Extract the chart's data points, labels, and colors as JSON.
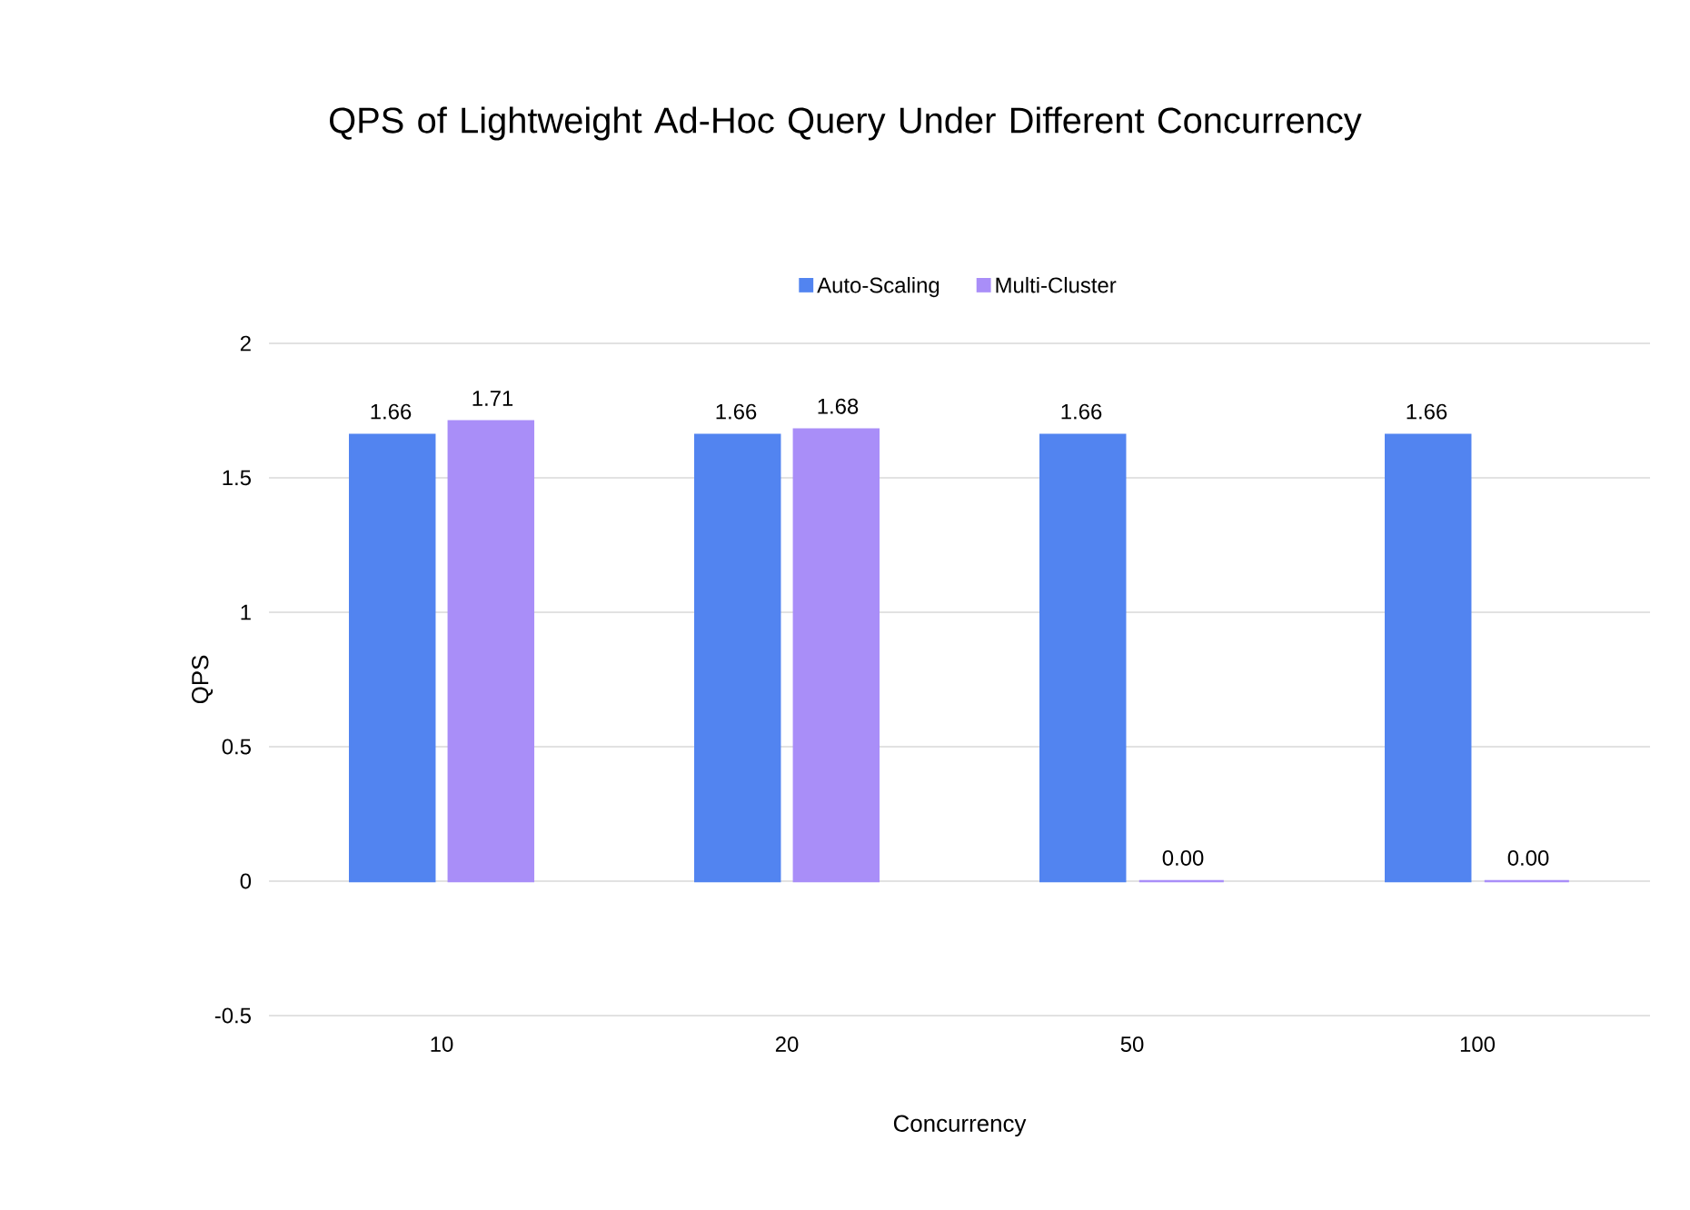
{
  "chart_data": {
    "type": "bar",
    "title": "QPS of Lightweight Ad-Hoc Query Under Different Concurrency",
    "xlabel": "Concurrency",
    "ylabel": "QPS",
    "categories": [
      "10",
      "20",
      "50",
      "100"
    ],
    "series": [
      {
        "name": "Auto-Scaling",
        "color": "#5284f0",
        "values": [
          1.66,
          1.66,
          1.66,
          1.66
        ],
        "value_labels": [
          "1.66",
          "1.66",
          "1.66",
          "1.66"
        ]
      },
      {
        "name": "Multi-Cluster",
        "color": "#a98ef8",
        "values": [
          1.71,
          1.68,
          0.0,
          0.0
        ],
        "value_labels": [
          "1.71",
          "1.68",
          "0.00",
          "0.00"
        ]
      }
    ],
    "ylim": [
      -0.5,
      2
    ],
    "yticks": [
      -0.5,
      0,
      0.5,
      1,
      1.5,
      2
    ],
    "grid": "y",
    "legend": "top"
  }
}
